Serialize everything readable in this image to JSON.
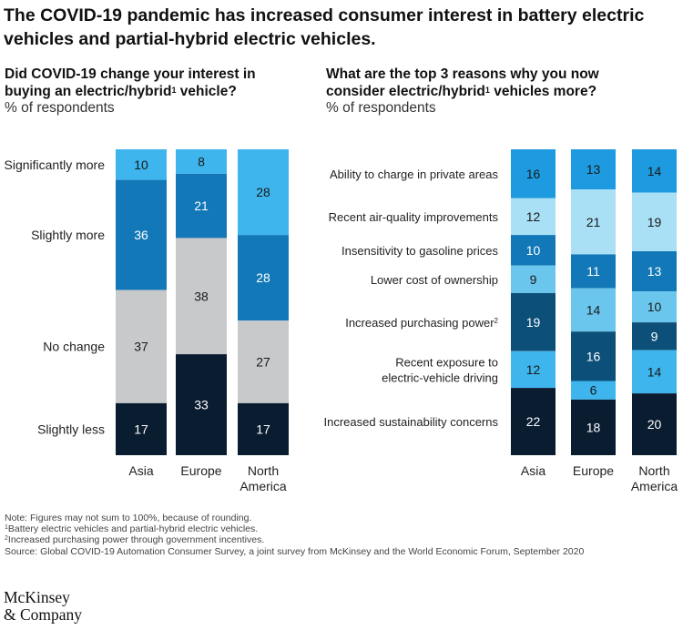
{
  "title": "The COVID-19 pandemic has increased consumer interest in battery electric vehicles and partial-hybrid electric vehicles.",
  "panels": [
    {
      "title_a": "Did COVID-19 change your interest in buying an electric/hybrid",
      "title_sup": "1",
      "title_b": " vehicle?",
      "subtitle": "% of respondents"
    },
    {
      "title_a": "What are the top 3 reasons why you now consider electric/hybrid",
      "title_sup": "1",
      "title_b": " vehicles more?",
      "subtitle": "% of respondents"
    }
  ],
  "chart_data": [
    {
      "type": "bar",
      "stacked": true,
      "categories": [
        "Asia",
        "Europe",
        "North America"
      ],
      "series": [
        {
          "name": "Significantly more",
          "values": [
            10,
            8,
            28
          ],
          "color": "#3fb5ee",
          "text_color": "#1a1a1a"
        },
        {
          "name": "Slightly more",
          "values": [
            36,
            21,
            28
          ],
          "color": "#1378b7",
          "text_color": "#ffffff"
        },
        {
          "name": "No change",
          "values": [
            37,
            38,
            27
          ],
          "color": "#c8c9cb",
          "text_color": "#1a1a1a"
        },
        {
          "name": "Slightly less",
          "values": [
            17,
            33,
            17
          ],
          "color": "#0a1c30",
          "text_color": "#ffffff"
        }
      ]
    },
    {
      "type": "bar",
      "stacked": true,
      "categories": [
        "Asia",
        "Europe",
        "North America"
      ],
      "series": [
        {
          "name": "Ability to charge in private areas",
          "values": [
            16,
            13,
            14
          ],
          "color": "#1e9be0",
          "text_color": "#1a1a1a"
        },
        {
          "name": "Recent air-quality improvements",
          "values": [
            12,
            21,
            19
          ],
          "color": "#a9e0f6",
          "text_color": "#1a1a1a"
        },
        {
          "name": "Insensitivity to gasoline prices",
          "values": [
            10,
            11,
            13
          ],
          "color": "#1378b7",
          "text_color": "#ffffff"
        },
        {
          "name": "Lower cost of ownership",
          "values": [
            9,
            14,
            10
          ],
          "color": "#6bc6ee",
          "text_color": "#1a1a1a"
        },
        {
          "name": "Increased purchasing power",
          "sup": "2",
          "values": [
            19,
            16,
            9
          ],
          "color": "#0c4f78",
          "text_color": "#ffffff"
        },
        {
          "name": "Recent exposure to electric-vehicle driving",
          "name_lines": [
            "Recent exposure to",
            "electric-vehicle driving"
          ],
          "values": [
            12,
            6,
            14
          ],
          "color": "#3fb5ee",
          "text_color": "#1a1a1a"
        },
        {
          "name": "Increased sustainability concerns",
          "values": [
            22,
            18,
            20
          ],
          "color": "#0a1c30",
          "text_color": "#ffffff"
        }
      ]
    }
  ],
  "category_labels": [
    [
      "Asia"
    ],
    [
      "Europe"
    ],
    [
      "North",
      "America"
    ]
  ],
  "notes": {
    "note": "Note: Figures may not sum to 100%, because of rounding.",
    "fn1_sup": "1",
    "fn1": "Battery electric vehicles and partial-hybrid electric vehicles.",
    "fn2_sup": "2",
    "fn2": "Increased purchasing power through government incentives.",
    "source": "Source: Global COVID-19 Automation Consumer Survey, a joint survey from McKinsey and the World Economic Forum, September 2020"
  },
  "logo": {
    "line1": "McKinsey",
    "line2": "& Company"
  }
}
